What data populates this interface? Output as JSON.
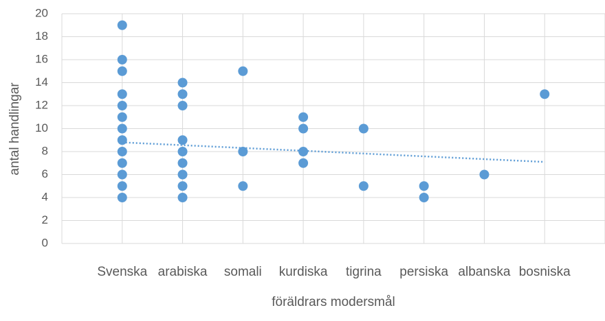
{
  "chart_data": {
    "type": "scatter",
    "x_label": "föräldrars modersmål",
    "y_label": "antal handlingar",
    "categories": [
      "Svenska",
      "arabiska",
      "somali",
      "kurdiska",
      "tigrina",
      "persiska",
      "albanska",
      "bosniska"
    ],
    "series": [
      {
        "color": "#5b9bd5",
        "x": [
          "Svenska",
          "Svenska",
          "Svenska",
          "Svenska",
          "Svenska",
          "Svenska",
          "Svenska",
          "Svenska",
          "Svenska",
          "Svenska",
          "Svenska",
          "Svenska",
          "Svenska",
          "arabiska",
          "arabiska",
          "arabiska",
          "arabiska",
          "arabiska",
          "arabiska",
          "arabiska",
          "arabiska",
          "arabiska",
          "somali",
          "somali",
          "somali",
          "kurdiska",
          "kurdiska",
          "kurdiska",
          "kurdiska",
          "tigrina",
          "tigrina",
          "persiska",
          "persiska",
          "albanska",
          "bosniska"
        ],
        "values": [
          19,
          16,
          15,
          13,
          12,
          11,
          10,
          9,
          8,
          7,
          6,
          5,
          4,
          14,
          13,
          12,
          9,
          8,
          7,
          6,
          5,
          4,
          15,
          8,
          5,
          11,
          10,
          8,
          7,
          10,
          5,
          5,
          4,
          6,
          13
        ]
      }
    ],
    "trendline": {
      "color": "#5b9bd5",
      "start": 8.8,
      "end": 7.1
    },
    "ylim": [
      0,
      20
    ],
    "yticks": [
      0,
      2,
      4,
      6,
      8,
      10,
      12,
      14,
      16,
      18,
      20
    ],
    "grid": true
  }
}
